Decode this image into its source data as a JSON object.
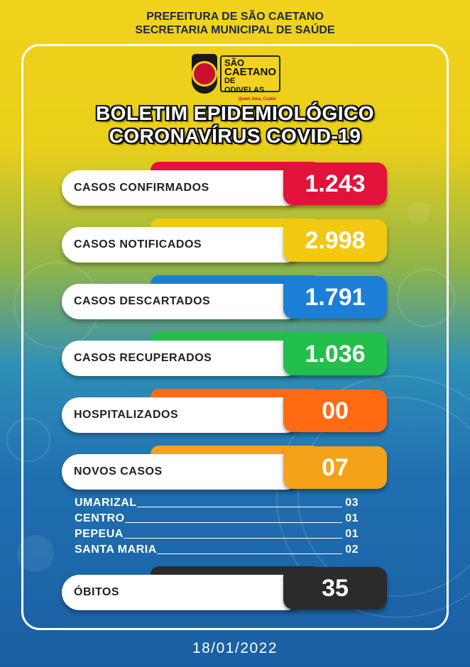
{
  "header": {
    "line1": "PREFEITURA DE SÃO CAETANO",
    "line2": "SECRETARIA MUNICIPAL DE SAÚDE"
  },
  "logo": {
    "seal_icon": "municipal-coat-of-arms",
    "name_top": "SÃO",
    "name_mid": "CAETANO",
    "name_bottom": "DE ODIVELAS",
    "slogan": "Quem Ama, Cuida!"
  },
  "title": {
    "line1": "BOLETIM EPIDEMIOLÓGICO",
    "line2": "CORONAVÍRUS COVID-19"
  },
  "stats": [
    {
      "label": "CASOS CONFIRMADOS",
      "value": "1.243",
      "color": "#e3123a"
    },
    {
      "label": "CASOS NOTIFICADOS",
      "value": "2.998",
      "color": "#f2c811"
    },
    {
      "label": "CASOS DESCARTADOS",
      "value": "1.791",
      "color": "#1b7fd6"
    },
    {
      "label": "CASOS RECUPERADOS",
      "value": "1.036",
      "color": "#22c04a"
    },
    {
      "label": "HOSPITALIZADOS",
      "value": "00",
      "color": "#ff6a13"
    },
    {
      "label": "NOVOS CASOS",
      "value": "07",
      "color": "#f3a21a"
    }
  ],
  "neighborhoods": [
    {
      "name": "UMARIZAL",
      "count": "03"
    },
    {
      "name": "CENTRO",
      "count": "01"
    },
    {
      "name": "PEPEUA",
      "count": "01"
    },
    {
      "name": "SANTA MARIA",
      "count": "02"
    }
  ],
  "deaths": {
    "label": "ÓBITOS",
    "value": "35",
    "color": "#2b2b2b"
  },
  "date": "18/01/2022"
}
